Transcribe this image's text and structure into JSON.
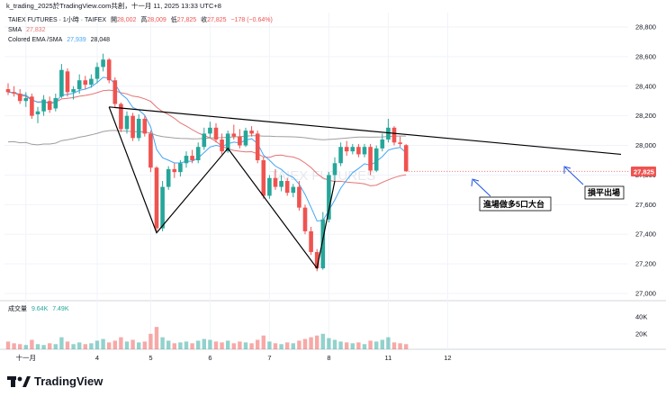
{
  "header": {
    "title": "k_trading_2025於TradingView.com共創，十一月 11, 2025 13:33 UTC+8"
  },
  "legend": {
    "symbol": "TAIEX FUTURES · 1小時 · TAIFEX",
    "open_label": "開",
    "open": "28,002",
    "high_label": "高",
    "high": "28,009",
    "low_label": "低",
    "low": "27,825",
    "close_label": "收",
    "close": "27,825",
    "change": "−178 (−0.64%)",
    "sma_label": "SMA",
    "sma_value": "27,832",
    "ema_label": "Colored EMA /SMA",
    "ema_value": "27,939",
    "ema_sma_value": "28,048",
    "volume_label": "成交量",
    "volume_value1": "9.64K",
    "volume_value2": "7.49K"
  },
  "annotations": {
    "entry": "進場做多5口大台",
    "exit": "損平出場"
  },
  "watermark": "TAIEX FUTURES",
  "price_badge": "27,825",
  "brand": "TradingView",
  "colors": {
    "up": "#26a69a",
    "down": "#ef5350",
    "sma": "#e57373",
    "ema": "#42a5f5",
    "ema_sma": "#9e9e9e",
    "neckline": "#000000"
  },
  "chart_data": {
    "type": "candlestick",
    "y_axis": {
      "ticks": [
        "28,800",
        "28,600",
        "28,400",
        "28,200",
        "28,000",
        "27,800",
        "27,600",
        "27,400",
        "27,200",
        "27,000"
      ],
      "range": [
        27000,
        28850
      ]
    },
    "volume_axis": {
      "ticks": [
        "40K",
        "20K"
      ]
    },
    "x_axis": {
      "labels": [
        "十一月",
        "4",
        "5",
        "6",
        "7",
        "8",
        "11",
        "12"
      ],
      "label_bar_index": [
        3,
        15,
        24,
        34,
        44,
        54,
        64,
        74
      ]
    },
    "bars": [
      {
        "o": 28380,
        "h": 28420,
        "l": 28340,
        "c": 28360
      },
      {
        "o": 28360,
        "h": 28400,
        "l": 28330,
        "c": 28350
      },
      {
        "o": 28350,
        "h": 28380,
        "l": 28280,
        "c": 28300
      },
      {
        "o": 28300,
        "h": 28360,
        "l": 28260,
        "c": 28320
      },
      {
        "o": 28330,
        "h": 28350,
        "l": 28180,
        "c": 28200
      },
      {
        "o": 28210,
        "h": 28260,
        "l": 28150,
        "c": 28230
      },
      {
        "o": 28230,
        "h": 28340,
        "l": 28200,
        "c": 28310
      },
      {
        "o": 28300,
        "h": 28330,
        "l": 28220,
        "c": 28240
      },
      {
        "o": 28250,
        "h": 28350,
        "l": 28230,
        "c": 28320
      },
      {
        "o": 28330,
        "h": 28550,
        "l": 28320,
        "c": 28510
      },
      {
        "o": 28500,
        "h": 28520,
        "l": 28330,
        "c": 28360
      },
      {
        "o": 28360,
        "h": 28400,
        "l": 28310,
        "c": 28380
      },
      {
        "o": 28380,
        "h": 28480,
        "l": 28350,
        "c": 28440
      },
      {
        "o": 28440,
        "h": 28470,
        "l": 28380,
        "c": 28410
      },
      {
        "o": 28410,
        "h": 28480,
        "l": 28390,
        "c": 28450
      },
      {
        "o": 28450,
        "h": 28560,
        "l": 28420,
        "c": 28530
      },
      {
        "o": 28530,
        "h": 28620,
        "l": 28500,
        "c": 28580
      },
      {
        "o": 28580,
        "h": 28590,
        "l": 28420,
        "c": 28440
      },
      {
        "o": 28440,
        "h": 28460,
        "l": 28260,
        "c": 28280
      },
      {
        "o": 28280,
        "h": 28290,
        "l": 28090,
        "c": 28110
      },
      {
        "o": 28110,
        "h": 28230,
        "l": 28080,
        "c": 28200
      },
      {
        "o": 28200,
        "h": 28220,
        "l": 28030,
        "c": 28050
      },
      {
        "o": 28050,
        "h": 28210,
        "l": 28030,
        "c": 28180
      },
      {
        "o": 28180,
        "h": 28200,
        "l": 28060,
        "c": 28080
      },
      {
        "o": 28080,
        "h": 28100,
        "l": 27820,
        "c": 27850
      },
      {
        "o": 27850,
        "h": 27860,
        "l": 27420,
        "c": 27440
      },
      {
        "o": 27440,
        "h": 27760,
        "l": 27420,
        "c": 27720
      },
      {
        "o": 27720,
        "h": 27860,
        "l": 27700,
        "c": 27840
      },
      {
        "o": 27840,
        "h": 27880,
        "l": 27780,
        "c": 27820
      },
      {
        "o": 27820,
        "h": 27900,
        "l": 27790,
        "c": 27880
      },
      {
        "o": 27880,
        "h": 27960,
        "l": 27850,
        "c": 27930
      },
      {
        "o": 27930,
        "h": 27970,
        "l": 27880,
        "c": 27900
      },
      {
        "o": 27900,
        "h": 28020,
        "l": 27880,
        "c": 27990
      },
      {
        "o": 27990,
        "h": 28120,
        "l": 27970,
        "c": 28080
      },
      {
        "o": 28080,
        "h": 28160,
        "l": 28050,
        "c": 28120
      },
      {
        "o": 28120,
        "h": 28150,
        "l": 28020,
        "c": 28040
      },
      {
        "o": 28040,
        "h": 28080,
        "l": 27940,
        "c": 27960
      },
      {
        "o": 27960,
        "h": 28100,
        "l": 27950,
        "c": 28080
      },
      {
        "o": 28080,
        "h": 28140,
        "l": 28040,
        "c": 28060
      },
      {
        "o": 28060,
        "h": 28110,
        "l": 27980,
        "c": 28000
      },
      {
        "o": 28000,
        "h": 28120,
        "l": 27990,
        "c": 28100
      },
      {
        "o": 28100,
        "h": 28130,
        "l": 28060,
        "c": 28080
      },
      {
        "o": 28080,
        "h": 28100,
        "l": 27880,
        "c": 27900
      },
      {
        "o": 27900,
        "h": 27920,
        "l": 27640,
        "c": 27660
      },
      {
        "o": 27660,
        "h": 27800,
        "l": 27640,
        "c": 27780
      },
      {
        "o": 27780,
        "h": 27840,
        "l": 27700,
        "c": 27720
      },
      {
        "o": 27720,
        "h": 27800,
        "l": 27690,
        "c": 27760
      },
      {
        "o": 27760,
        "h": 27780,
        "l": 27660,
        "c": 27680
      },
      {
        "o": 27680,
        "h": 27740,
        "l": 27650,
        "c": 27720
      },
      {
        "o": 27720,
        "h": 27760,
        "l": 27560,
        "c": 27580
      },
      {
        "o": 27580,
        "h": 27600,
        "l": 27400,
        "c": 27420
      },
      {
        "o": 27420,
        "h": 27450,
        "l": 27260,
        "c": 27280
      },
      {
        "o": 27280,
        "h": 27300,
        "l": 27150,
        "c": 27170
      },
      {
        "o": 27170,
        "h": 27550,
        "l": 27160,
        "c": 27500
      },
      {
        "o": 27500,
        "h": 27820,
        "l": 27480,
        "c": 27800
      },
      {
        "o": 27800,
        "h": 27920,
        "l": 27760,
        "c": 27880
      },
      {
        "o": 27880,
        "h": 28020,
        "l": 27860,
        "c": 27990
      },
      {
        "o": 27990,
        "h": 28030,
        "l": 27930,
        "c": 27960
      },
      {
        "o": 27960,
        "h": 28010,
        "l": 27940,
        "c": 27990
      },
      {
        "o": 27990,
        "h": 28010,
        "l": 27920,
        "c": 27940
      },
      {
        "o": 27940,
        "h": 28010,
        "l": 27920,
        "c": 27990
      },
      {
        "o": 27990,
        "h": 28010,
        "l": 27800,
        "c": 27830
      },
      {
        "o": 27830,
        "h": 28000,
        "l": 27820,
        "c": 27980
      },
      {
        "o": 27980,
        "h": 28080,
        "l": 27960,
        "c": 28040
      },
      {
        "o": 28040,
        "h": 28180,
        "l": 28020,
        "c": 28120
      },
      {
        "o": 28120,
        "h": 28130,
        "l": 28000,
        "c": 28020
      },
      {
        "o": 28020,
        "h": 28060,
        "l": 27990,
        "c": 28010
      },
      {
        "o": 28002,
        "h": 28009,
        "l": 27825,
        "c": 27825
      }
    ],
    "volume": [
      9,
      7,
      6,
      5,
      11,
      6,
      5,
      7,
      6,
      14,
      9,
      6,
      8,
      6,
      7,
      10,
      12,
      8,
      10,
      14,
      9,
      11,
      8,
      9,
      18,
      26,
      14,
      10,
      7,
      8,
      9,
      7,
      10,
      12,
      11,
      9,
      8,
      10,
      7,
      9,
      8,
      7,
      11,
      16,
      9,
      7,
      6,
      8,
      7,
      10,
      12,
      14,
      16,
      18,
      13,
      11,
      9,
      8,
      7,
      8,
      6,
      10,
      9,
      11,
      14,
      8,
      7,
      6
    ],
    "neckline": {
      "start": [
        17,
        28260
      ],
      "end": [
        75,
        27940
      ]
    },
    "pattern_points": [
      [
        17,
        28260
      ],
      [
        25,
        27410
      ],
      [
        37,
        27980
      ],
      [
        52,
        27170
      ],
      [
        55,
        27760
      ]
    ]
  }
}
